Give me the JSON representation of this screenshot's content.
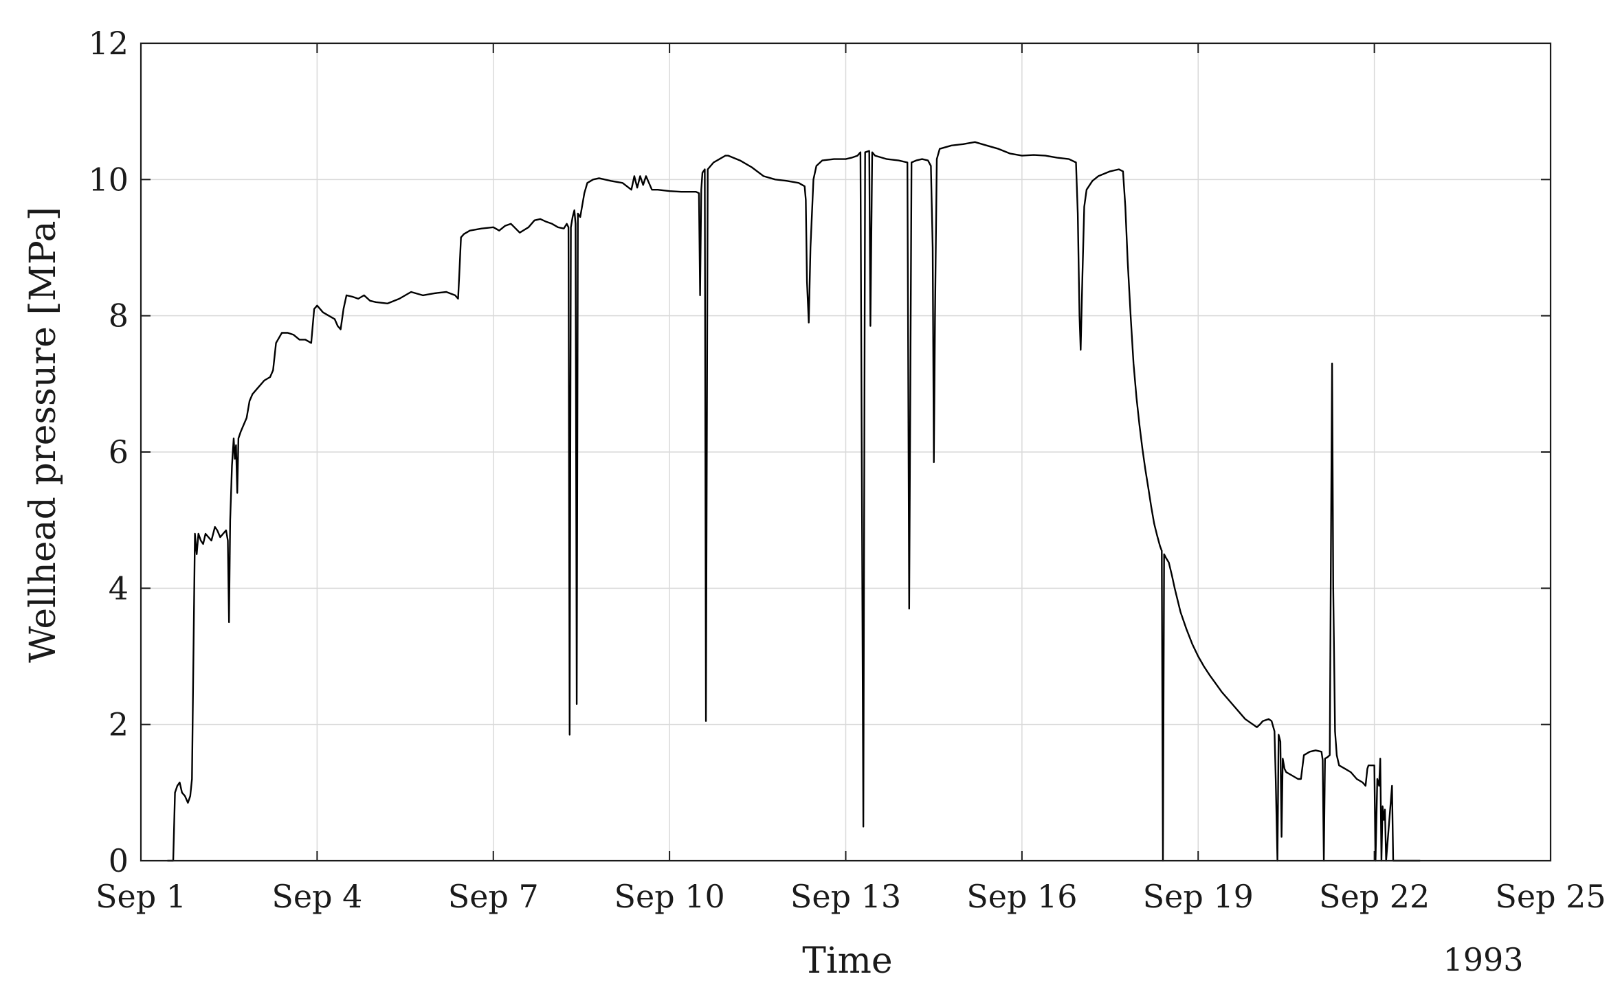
{
  "chart_data": {
    "type": "line",
    "title": "",
    "xlabel": "Time",
    "ylabel": "Wellhead pressure [MPa]",
    "year_label": "1993",
    "xlim_day": [
      1,
      25
    ],
    "ylim": [
      0,
      12
    ],
    "grid": true,
    "x_ticks": [
      {
        "day": 1,
        "label": "Sep 1"
      },
      {
        "day": 4,
        "label": "Sep 4"
      },
      {
        "day": 7,
        "label": "Sep 7"
      },
      {
        "day": 10,
        "label": "Sep 10"
      },
      {
        "day": 13,
        "label": "Sep 13"
      },
      {
        "day": 16,
        "label": "Sep 16"
      },
      {
        "day": 19,
        "label": "Sep 19"
      },
      {
        "day": 22,
        "label": "Sep 22"
      },
      {
        "day": 25,
        "label": "Sep 25"
      }
    ],
    "y_ticks": [
      0,
      2,
      4,
      6,
      8,
      10,
      12
    ],
    "series": [
      {
        "color": "#000000",
        "points": [
          [
            1.45,
            0
          ],
          [
            1.55,
            0
          ],
          [
            1.58,
            1.0
          ],
          [
            1.62,
            1.1
          ],
          [
            1.66,
            1.15
          ],
          [
            1.7,
            1.0
          ],
          [
            1.75,
            0.95
          ],
          [
            1.8,
            0.85
          ],
          [
            1.84,
            0.95
          ],
          [
            1.87,
            1.2
          ],
          [
            1.9,
            3.4
          ],
          [
            1.92,
            4.8
          ],
          [
            1.95,
            4.5
          ],
          [
            1.98,
            4.8
          ],
          [
            2.02,
            4.7
          ],
          [
            2.06,
            4.65
          ],
          [
            2.1,
            4.8
          ],
          [
            2.15,
            4.75
          ],
          [
            2.2,
            4.7
          ],
          [
            2.26,
            4.9
          ],
          [
            2.3,
            4.85
          ],
          [
            2.35,
            4.75
          ],
          [
            2.4,
            4.8
          ],
          [
            2.45,
            4.85
          ],
          [
            2.48,
            4.7
          ],
          [
            2.5,
            3.5
          ],
          [
            2.52,
            5.0
          ],
          [
            2.55,
            5.8
          ],
          [
            2.58,
            6.2
          ],
          [
            2.6,
            5.9
          ],
          [
            2.62,
            6.1
          ],
          [
            2.64,
            5.4
          ],
          [
            2.66,
            6.2
          ],
          [
            2.7,
            6.3
          ],
          [
            2.8,
            6.5
          ],
          [
            2.85,
            6.75
          ],
          [
            2.9,
            6.85
          ],
          [
            3.0,
            6.95
          ],
          [
            3.1,
            7.05
          ],
          [
            3.2,
            7.1
          ],
          [
            3.25,
            7.2
          ],
          [
            3.3,
            7.6
          ],
          [
            3.4,
            7.75
          ],
          [
            3.5,
            7.75
          ],
          [
            3.6,
            7.72
          ],
          [
            3.7,
            7.65
          ],
          [
            3.8,
            7.65
          ],
          [
            3.9,
            7.6
          ],
          [
            3.95,
            8.1
          ],
          [
            4.0,
            8.15
          ],
          [
            4.1,
            8.05
          ],
          [
            4.2,
            8.0
          ],
          [
            4.3,
            7.95
          ],
          [
            4.35,
            7.85
          ],
          [
            4.4,
            7.8
          ],
          [
            4.45,
            8.1
          ],
          [
            4.5,
            8.3
          ],
          [
            4.6,
            8.28
          ],
          [
            4.7,
            8.25
          ],
          [
            4.8,
            8.3
          ],
          [
            4.9,
            8.22
          ],
          [
            5.0,
            8.2
          ],
          [
            5.2,
            8.18
          ],
          [
            5.4,
            8.25
          ],
          [
            5.5,
            8.3
          ],
          [
            5.6,
            8.35
          ],
          [
            5.8,
            8.3
          ],
          [
            6.0,
            8.33
          ],
          [
            6.2,
            8.35
          ],
          [
            6.35,
            8.3
          ],
          [
            6.4,
            8.25
          ],
          [
            6.42,
            8.6
          ],
          [
            6.45,
            9.15
          ],
          [
            6.5,
            9.2
          ],
          [
            6.6,
            9.25
          ],
          [
            6.8,
            9.28
          ],
          [
            7.0,
            9.3
          ],
          [
            7.1,
            9.25
          ],
          [
            7.2,
            9.32
          ],
          [
            7.3,
            9.35
          ],
          [
            7.45,
            9.22
          ],
          [
            7.6,
            9.3
          ],
          [
            7.7,
            9.4
          ],
          [
            7.8,
            9.42
          ],
          [
            7.9,
            9.38
          ],
          [
            8.0,
            9.35
          ],
          [
            8.1,
            9.3
          ],
          [
            8.2,
            9.28
          ],
          [
            8.25,
            9.35
          ],
          [
            8.28,
            9.3
          ],
          [
            8.3,
            1.85
          ],
          [
            8.32,
            9.3
          ],
          [
            8.35,
            9.45
          ],
          [
            8.38,
            9.55
          ],
          [
            8.4,
            9.35
          ],
          [
            8.42,
            2.3
          ],
          [
            8.44,
            9.5
          ],
          [
            8.48,
            9.45
          ],
          [
            8.55,
            9.8
          ],
          [
            8.6,
            9.95
          ],
          [
            8.7,
            10.0
          ],
          [
            8.8,
            10.02
          ],
          [
            9.0,
            9.98
          ],
          [
            9.2,
            9.95
          ],
          [
            9.35,
            9.85
          ],
          [
            9.4,
            10.05
          ],
          [
            9.45,
            9.88
          ],
          [
            9.5,
            10.05
          ],
          [
            9.55,
            9.92
          ],
          [
            9.6,
            10.05
          ],
          [
            9.65,
            9.95
          ],
          [
            9.7,
            9.85
          ],
          [
            9.8,
            9.85
          ],
          [
            10.0,
            9.83
          ],
          [
            10.2,
            9.82
          ],
          [
            10.45,
            9.82
          ],
          [
            10.5,
            9.8
          ],
          [
            10.52,
            8.3
          ],
          [
            10.54,
            9.85
          ],
          [
            10.56,
            10.1
          ],
          [
            10.6,
            10.15
          ],
          [
            10.62,
            2.05
          ],
          [
            10.65,
            10.15
          ],
          [
            10.7,
            10.2
          ],
          [
            10.75,
            10.25
          ],
          [
            10.85,
            10.3
          ],
          [
            10.95,
            10.35
          ],
          [
            11.0,
            10.35
          ],
          [
            11.2,
            10.28
          ],
          [
            11.4,
            10.18
          ],
          [
            11.6,
            10.05
          ],
          [
            11.8,
            10.0
          ],
          [
            12.0,
            9.98
          ],
          [
            12.2,
            9.95
          ],
          [
            12.3,
            9.9
          ],
          [
            12.32,
            9.7
          ],
          [
            12.34,
            8.5
          ],
          [
            12.37,
            7.9
          ],
          [
            12.4,
            9.0
          ],
          [
            12.45,
            10.0
          ],
          [
            12.5,
            10.2
          ],
          [
            12.6,
            10.28
          ],
          [
            12.8,
            10.3
          ],
          [
            13.0,
            10.3
          ],
          [
            13.1,
            10.32
          ],
          [
            13.2,
            10.35
          ],
          [
            13.25,
            10.4
          ],
          [
            13.3,
            0.5
          ],
          [
            13.33,
            10.4
          ],
          [
            13.4,
            10.42
          ],
          [
            13.42,
            7.85
          ],
          [
            13.45,
            10.4
          ],
          [
            13.5,
            10.35
          ],
          [
            13.7,
            10.3
          ],
          [
            13.9,
            10.28
          ],
          [
            14.05,
            10.25
          ],
          [
            14.08,
            3.7
          ],
          [
            14.12,
            10.25
          ],
          [
            14.2,
            10.28
          ],
          [
            14.3,
            10.3
          ],
          [
            14.4,
            10.28
          ],
          [
            14.45,
            10.2
          ],
          [
            14.48,
            9.0
          ],
          [
            14.5,
            5.85
          ],
          [
            14.52,
            8.0
          ],
          [
            14.55,
            10.3
          ],
          [
            14.6,
            10.45
          ],
          [
            14.8,
            10.5
          ],
          [
            15.0,
            10.52
          ],
          [
            15.2,
            10.55
          ],
          [
            15.4,
            10.5
          ],
          [
            15.6,
            10.45
          ],
          [
            15.8,
            10.38
          ],
          [
            16.0,
            10.35
          ],
          [
            16.2,
            10.36
          ],
          [
            16.4,
            10.35
          ],
          [
            16.6,
            10.32
          ],
          [
            16.8,
            10.3
          ],
          [
            16.92,
            10.25
          ],
          [
            16.95,
            9.5
          ],
          [
            16.98,
            8.0
          ],
          [
            17.0,
            7.5
          ],
          [
            17.03,
            8.6
          ],
          [
            17.06,
            9.6
          ],
          [
            17.1,
            9.85
          ],
          [
            17.2,
            9.98
          ],
          [
            17.3,
            10.05
          ],
          [
            17.5,
            10.12
          ],
          [
            17.65,
            10.15
          ],
          [
            17.72,
            10.12
          ],
          [
            17.76,
            9.6
          ],
          [
            17.8,
            8.8
          ],
          [
            17.85,
            8.0
          ],
          [
            17.9,
            7.3
          ],
          [
            17.95,
            6.8
          ],
          [
            18.0,
            6.4
          ],
          [
            18.05,
            6.05
          ],
          [
            18.1,
            5.75
          ],
          [
            18.15,
            5.48
          ],
          [
            18.2,
            5.2
          ],
          [
            18.25,
            4.95
          ],
          [
            18.3,
            4.78
          ],
          [
            18.35,
            4.62
          ],
          [
            18.38,
            4.55
          ],
          [
            18.4,
            0
          ],
          [
            18.42,
            4.5
          ],
          [
            18.45,
            4.45
          ],
          [
            18.5,
            4.38
          ],
          [
            18.55,
            4.2
          ],
          [
            18.6,
            4.0
          ],
          [
            18.7,
            3.65
          ],
          [
            18.8,
            3.4
          ],
          [
            18.9,
            3.18
          ],
          [
            19.0,
            3.0
          ],
          [
            19.1,
            2.85
          ],
          [
            19.2,
            2.72
          ],
          [
            19.3,
            2.6
          ],
          [
            19.4,
            2.48
          ],
          [
            19.5,
            2.38
          ],
          [
            19.6,
            2.28
          ],
          [
            19.7,
            2.18
          ],
          [
            19.8,
            2.08
          ],
          [
            19.9,
            2.02
          ],
          [
            20.0,
            1.96
          ],
          [
            20.05,
            2.0
          ],
          [
            20.1,
            2.05
          ],
          [
            20.2,
            2.08
          ],
          [
            20.25,
            2.05
          ],
          [
            20.3,
            1.9
          ],
          [
            20.32,
            1.2
          ],
          [
            20.35,
            0
          ],
          [
            20.37,
            1.85
          ],
          [
            20.4,
            1.75
          ],
          [
            20.42,
            0.35
          ],
          [
            20.44,
            1.5
          ],
          [
            20.47,
            1.35
          ],
          [
            20.5,
            1.3
          ],
          [
            20.6,
            1.25
          ],
          [
            20.7,
            1.2
          ],
          [
            20.75,
            1.2
          ],
          [
            20.8,
            1.55
          ],
          [
            20.9,
            1.6
          ],
          [
            21.0,
            1.62
          ],
          [
            21.1,
            1.6
          ],
          [
            21.12,
            1.48
          ],
          [
            21.14,
            0
          ],
          [
            21.16,
            1.5
          ],
          [
            21.2,
            1.52
          ],
          [
            21.24,
            1.55
          ],
          [
            21.26,
            4.5
          ],
          [
            21.28,
            7.3
          ],
          [
            21.3,
            4.0
          ],
          [
            21.33,
            1.9
          ],
          [
            21.36,
            1.55
          ],
          [
            21.4,
            1.4
          ],
          [
            21.5,
            1.35
          ],
          [
            21.6,
            1.3
          ],
          [
            21.7,
            1.2
          ],
          [
            21.8,
            1.15
          ],
          [
            21.85,
            1.1
          ],
          [
            21.88,
            1.35
          ],
          [
            21.9,
            1.4
          ],
          [
            22.0,
            1.4
          ],
          [
            22.02,
            0
          ],
          [
            22.05,
            1.2
          ],
          [
            22.08,
            1.1
          ],
          [
            22.1,
            1.5
          ],
          [
            22.12,
            0
          ],
          [
            22.14,
            0.8
          ],
          [
            22.16,
            0.6
          ],
          [
            22.18,
            0.75
          ],
          [
            22.2,
            0
          ],
          [
            22.3,
            1.1
          ],
          [
            22.32,
            0
          ],
          [
            22.4,
            0
          ],
          [
            22.5,
            0
          ],
          [
            22.7,
            0
          ],
          [
            22.78,
            0
          ]
        ]
      }
    ]
  }
}
